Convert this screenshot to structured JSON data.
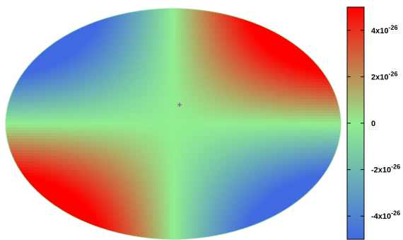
{
  "chart_data": {
    "type": "heatmap",
    "projection": "mollweide",
    "colorbar": {
      "ticks": [
        {
          "value": 4e-26,
          "label": "4x10",
          "exp": "-26"
        },
        {
          "value": 2e-26,
          "label": "2x10",
          "exp": "-26"
        },
        {
          "value": 0,
          "label": "0",
          "exp": ""
        },
        {
          "value": -2e-26,
          "label": "-2x10",
          "exp": "-26"
        },
        {
          "value": -4e-26,
          "label": "-4x10",
          "exp": "-26"
        }
      ],
      "range": [
        -5e-26,
        5e-26
      ],
      "colors": {
        "low": "#4169e1",
        "mid": "#90ee90",
        "high": "#ff0000"
      }
    },
    "pattern": "quadrupole: positive in upper-right and lower-left lobes, negative in upper-left and lower-right lobes, near zero along center meridian and equator",
    "center_marker": "+"
  }
}
